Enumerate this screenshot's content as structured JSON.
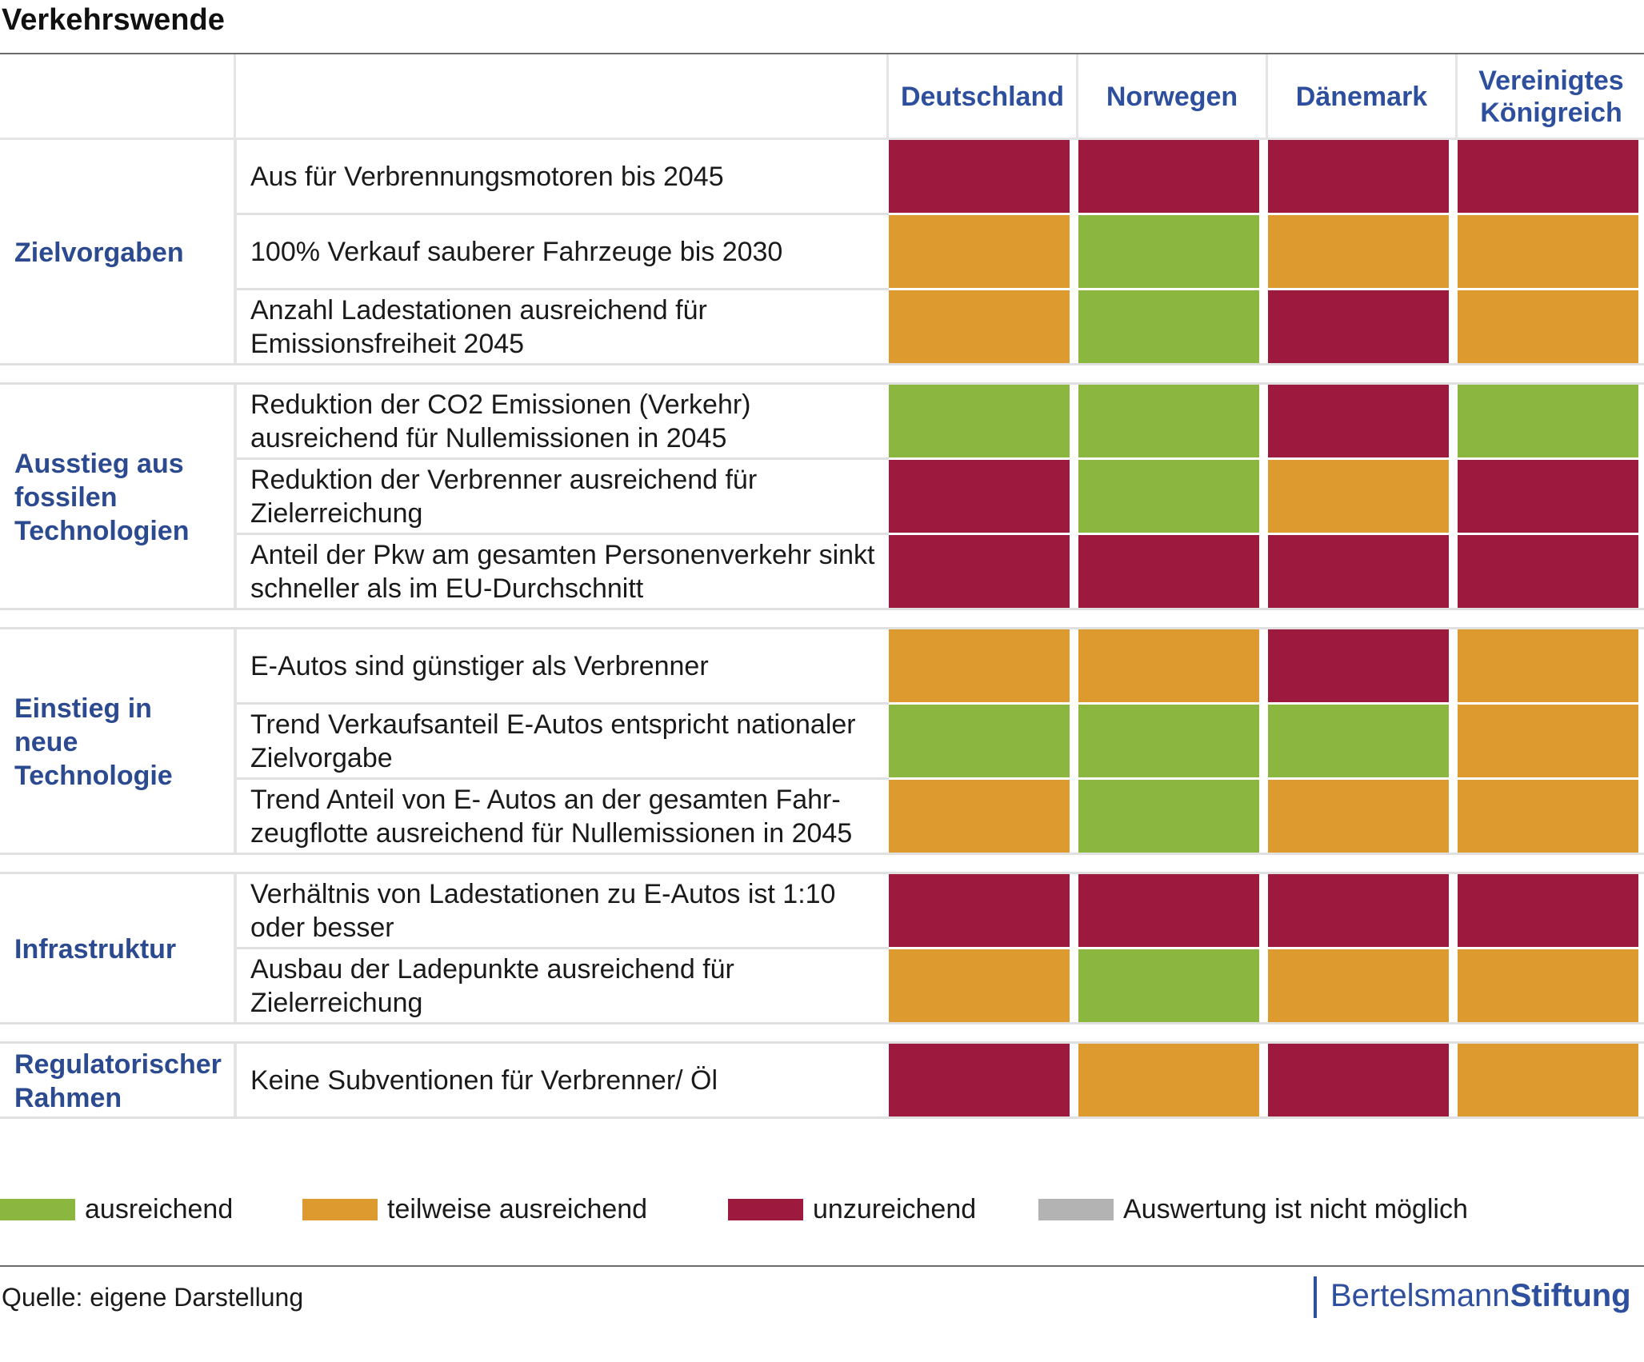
{
  "title": "Verkehrswende",
  "colors": {
    "ausreichend": "#8bb63f",
    "teilweise": "#dd9a2f",
    "unzureichend": "#9d1a3e",
    "nicht_moeglich": "#b3b3b3"
  },
  "chart_data": {
    "type": "table",
    "columns": [
      "Deutschland",
      "Norwegen",
      "Dänemark",
      "Vereinigtes Königreich"
    ],
    "groups": [
      {
        "label": "Zielvorgaben",
        "rows": [
          {
            "text": "Aus für Verbrennungsmotoren bis 2045",
            "ratings": [
              "unzureichend",
              "unzureichend",
              "unzureichend",
              "unzureichend"
            ]
          },
          {
            "text": "100% Verkauf sauberer Fahrzeuge bis 2030",
            "ratings": [
              "teilweise",
              "ausreichend",
              "teilweise",
              "teilweise"
            ]
          },
          {
            "text": "Anzahl Ladestationen ausreichend für Emissionsfreiheit 2045",
            "ratings": [
              "teilweise",
              "ausreichend",
              "unzureichend",
              "teilweise"
            ]
          }
        ]
      },
      {
        "label": "Ausstieg aus fossilen Technologien",
        "rows": [
          {
            "text": "Reduktion der CO2 Emissionen (Verkehr) ausreichend für Nullemissionen in 2045",
            "ratings": [
              "ausreichend",
              "ausreichend",
              "unzureichend",
              "ausreichend"
            ]
          },
          {
            "text": "Reduktion der Verbrenner ausreichend für Zielerreichung",
            "ratings": [
              "unzureichend",
              "ausreichend",
              "teilweise",
              "unzureichend"
            ]
          },
          {
            "text": "Anteil der Pkw am gesamten Personenverkehr sinkt schneller als im EU-Durchschnitt",
            "ratings": [
              "unzureichend",
              "unzureichend",
              "unzureichend",
              "unzureichend"
            ]
          }
        ]
      },
      {
        "label": "Einstieg in neue Technologie",
        "rows": [
          {
            "text": "E-Autos sind günstiger als Verbrenner",
            "ratings": [
              "teilweise",
              "teilweise",
              "unzureichend",
              "teilweise"
            ]
          },
          {
            "text": "Trend Verkaufsanteil E-Autos entspricht nationaler Zielvorgabe",
            "ratings": [
              "ausreichend",
              "ausreichend",
              "ausreichend",
              "teilweise"
            ]
          },
          {
            "text": "Trend Anteil von E- Autos an der gesamten Fahr-zeugflotte ausreichend für Nullemissionen in 2045",
            "ratings": [
              "teilweise",
              "ausreichend",
              "teilweise",
              "teilweise"
            ]
          }
        ]
      },
      {
        "label": "Infrastruktur",
        "rows": [
          {
            "text": "Verhältnis von Ladestationen zu E-Autos ist 1:10 oder besser",
            "ratings": [
              "unzureichend",
              "unzureichend",
              "unzureichend",
              "unzureichend"
            ]
          },
          {
            "text": "Ausbau der Ladepunkte ausreichend für Zielerreichung",
            "ratings": [
              "teilweise",
              "ausreichend",
              "teilweise",
              "teilweise"
            ]
          }
        ]
      },
      {
        "label": "Regulatorischer Rahmen",
        "rows": [
          {
            "text": "Keine Subventionen für Verbrenner/ Öl",
            "ratings": [
              "unzureichend",
              "teilweise",
              "unzureichend",
              "teilweise"
            ]
          }
        ]
      }
    ]
  },
  "legend": [
    {
      "key": "ausreichend",
      "label": "ausreichend"
    },
    {
      "key": "teilweise",
      "label": "teilweise ausreichend"
    },
    {
      "key": "unzureichend",
      "label": "unzureichend"
    },
    {
      "key": "nicht_moeglich",
      "label": "Auswertung ist nicht möglich"
    }
  ],
  "source": "Quelle: eigene Darstellung",
  "brand": {
    "part1": "Bertelsmann",
    "part2": "Stiftung"
  }
}
